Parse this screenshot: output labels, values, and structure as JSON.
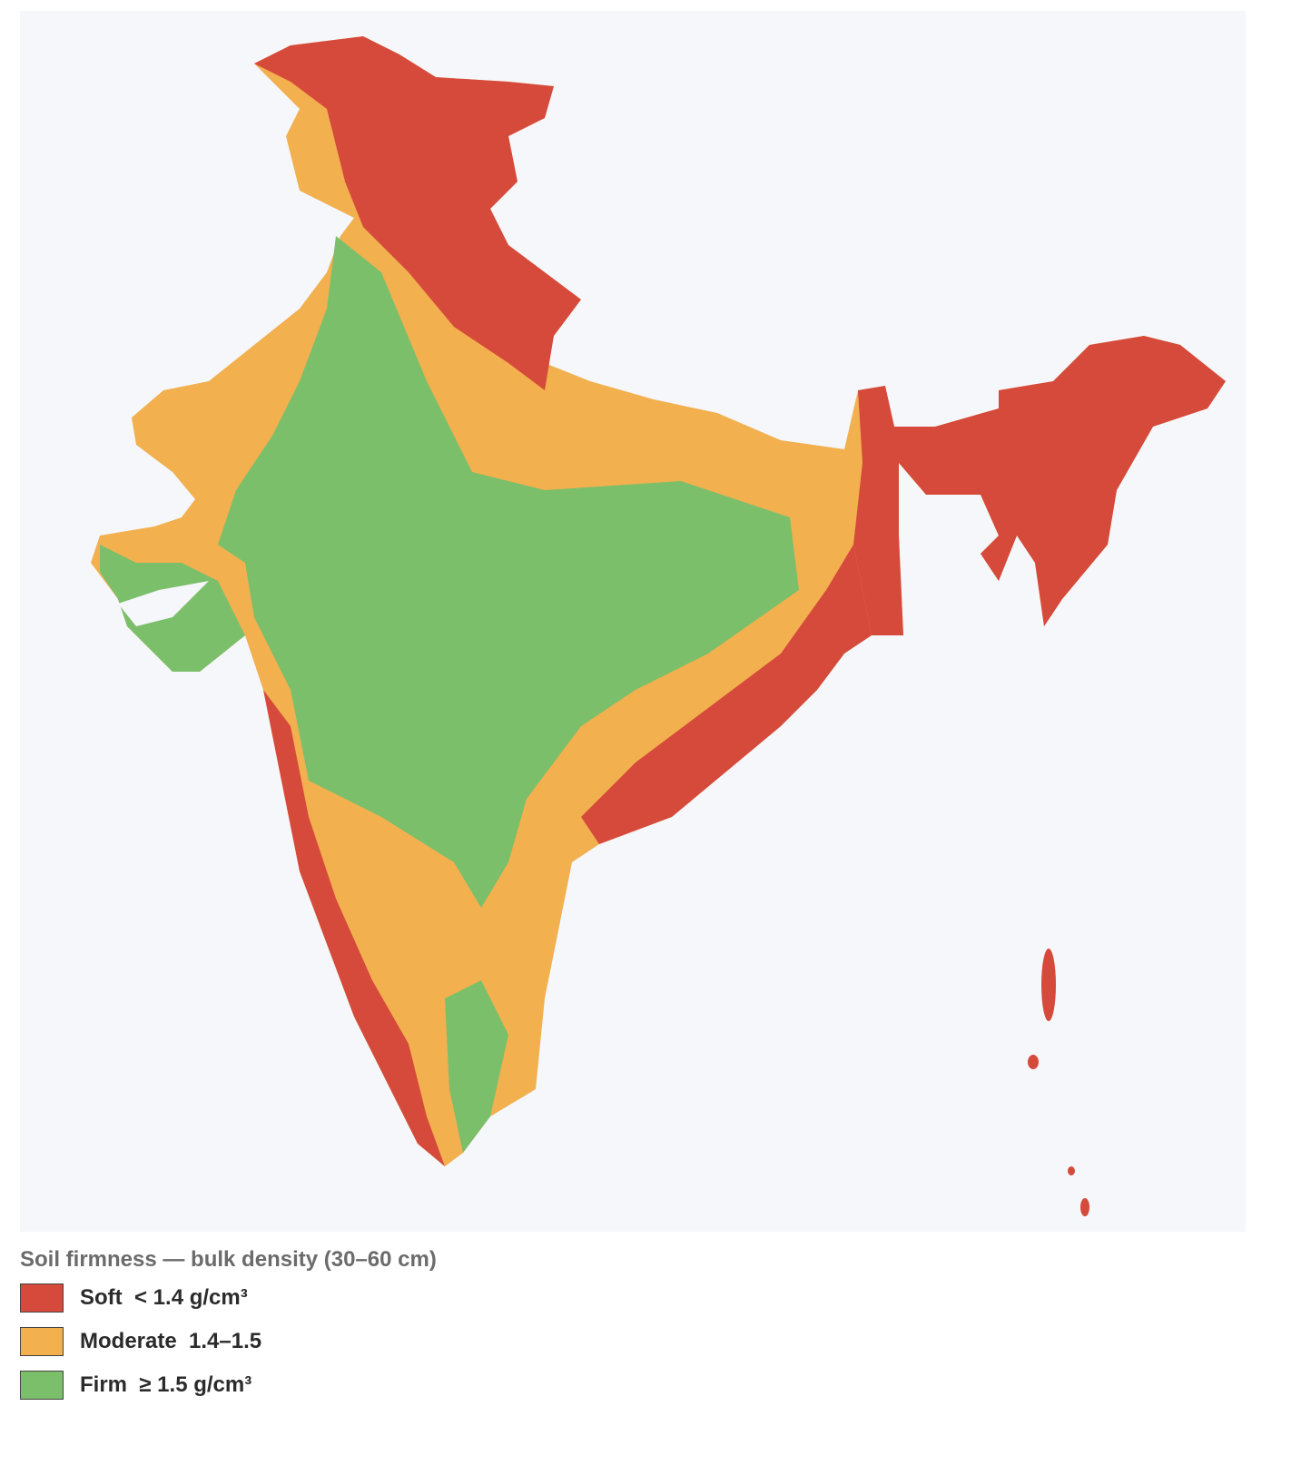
{
  "legend": {
    "title": "Soil firmness — bulk density (30–60 cm)",
    "items": [
      {
        "label": "Soft  < 1.4 g/cm³",
        "color": "#d64a3b"
      },
      {
        "label": "Moderate  1.4–1.5",
        "color": "#f2b04f"
      },
      {
        "label": "Firm  ≥ 1.5 g/cm³",
        "color": "#7bbf6a"
      }
    ]
  }
}
